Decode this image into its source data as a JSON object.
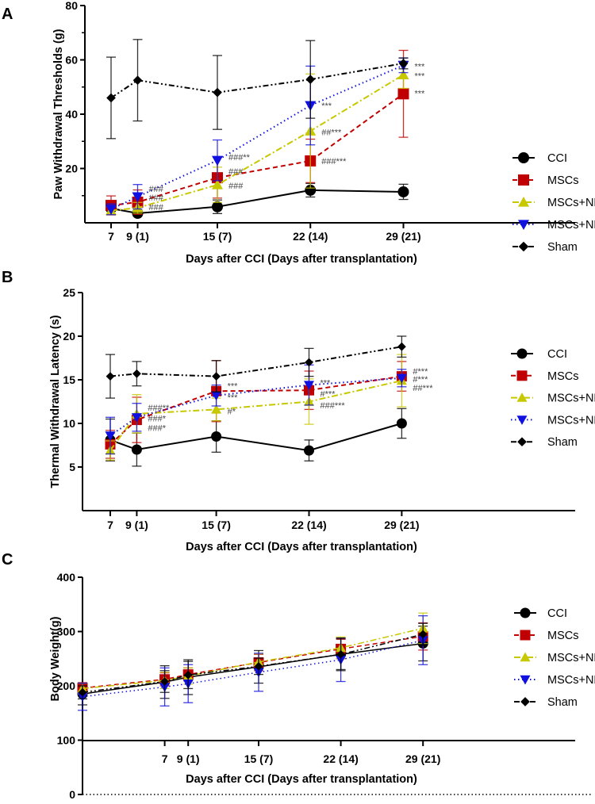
{
  "series_styles": [
    {
      "name": "CCI",
      "color": "#000000",
      "marker": "circle",
      "line": "solid"
    },
    {
      "name": "MSCs",
      "color": "#c00000",
      "marker": "square",
      "line": "dashed"
    },
    {
      "name": "MSCs+NPs",
      "color": "#c8c800",
      "marker": "triangle-up",
      "line": "dash-dot"
    },
    {
      "name": "MSCs+NPs+M",
      "color": "#1010e0",
      "marker": "triangle-down",
      "line": "dotted"
    },
    {
      "name": "Sham",
      "color": "#000000",
      "marker": "diamond",
      "line": "dash-dot-dot"
    }
  ],
  "chart_data": [
    {
      "panel": "A",
      "type": "line",
      "ylabel": "Paw Withdrawal Thresholds (g)",
      "xlabel": "Days after CCI (Days after transplantation)",
      "ylim": [
        0,
        80
      ],
      "yticks": [
        20,
        40,
        60,
        80
      ],
      "x": [
        7,
        9,
        15,
        22,
        29
      ],
      "xtick_labels": [
        "7",
        "9 (1)",
        "15 (7)",
        "22 (14)",
        "29 (21)"
      ],
      "series": [
        {
          "name": "CCI",
          "values": [
            5.3,
            3.5,
            5.9,
            12,
            11.4
          ],
          "errors": [
            1,
            1,
            2.5,
            2.5,
            2.8
          ]
        },
        {
          "name": "MSCs",
          "values": [
            6.4,
            7.6,
            16.6,
            22.8,
            47.5
          ],
          "errors": [
            3.5,
            4.5,
            7.5,
            8,
            16
          ]
        },
        {
          "name": "MSCs+NPs",
          "values": [
            4.5,
            5.5,
            14,
            33.8,
            54.5
          ],
          "errors": [
            1.5,
            2,
            6.5,
            21,
            5
          ]
        },
        {
          "name": "MSCs+NPs+M",
          "values": [
            5,
            9.6,
            23,
            43.2,
            58
          ],
          "errors": [
            2,
            4.5,
            7.5,
            14.5,
            2.7
          ]
        },
        {
          "name": "Sham",
          "values": [
            46,
            52.5,
            48,
            52.8,
            58.7
          ],
          "errors": [
            15,
            15,
            13.6,
            14.3,
            2
          ]
        }
      ],
      "annotations": [
        {
          "text": "###",
          "x": 9,
          "y": 12.5
        },
        {
          "text": "###",
          "x": 9,
          "y": 9.3
        },
        {
          "text": "###",
          "x": 9,
          "y": 5.8
        },
        {
          "text": "###**",
          "x": 15,
          "y": 24.2
        },
        {
          "text": "###",
          "x": 15,
          "y": 19
        },
        {
          "text": "###",
          "x": 15,
          "y": 13.7
        },
        {
          "text": "***",
          "x": 22,
          "y": 43.2
        },
        {
          "text": "##***",
          "x": 22,
          "y": 33.5
        },
        {
          "text": "###***",
          "x": 22,
          "y": 22.8
        },
        {
          "text": "***",
          "x": 29,
          "y": 57.7
        },
        {
          "text": "***",
          "x": 29,
          "y": 54.2
        },
        {
          "text": "***",
          "x": 29,
          "y": 47.8
        }
      ],
      "legend": "right"
    },
    {
      "panel": "B",
      "type": "line",
      "ylabel": "Thermal Withdrawal Latency (s)",
      "xlabel": "Days after CCI (Days after transplantation)",
      "ylim": [
        0,
        25
      ],
      "yticks": [
        5,
        10,
        15,
        20,
        25
      ],
      "x": [
        7,
        9,
        15,
        22,
        29
      ],
      "xtick_labels": [
        "7",
        "9 (1)",
        "15 (7)",
        "22 (14)",
        "29 (21)"
      ],
      "series": [
        {
          "name": "CCI",
          "values": [
            8.1,
            7.0,
            8.5,
            6.9,
            10.0
          ],
          "errors": [
            2.4,
            1.9,
            1.8,
            1.2,
            1.7
          ]
        },
        {
          "name": "MSCs",
          "values": [
            7.6,
            10.4,
            13.7,
            13.8,
            15.4
          ],
          "errors": [
            1.6,
            2.6,
            3.5,
            2.2,
            1.7
          ]
        },
        {
          "name": "MSCs+NPs",
          "values": [
            6.9,
            11.1,
            11.6,
            12.5,
            14.9
          ],
          "errors": [
            1.1,
            2.2,
            1.3,
            2.6,
            3
          ]
        },
        {
          "name": "MSCs+NPs+M",
          "values": [
            8.6,
            10.7,
            13.2,
            14.4,
            15.2
          ],
          "errors": [
            2.1,
            1.6,
            1.2,
            2.3,
            1
          ]
        },
        {
          "name": "Sham",
          "values": [
            15.4,
            15.7,
            15.4,
            17.0,
            18.8
          ],
          "errors": [
            2.5,
            1.4,
            1.8,
            1.6,
            1.2
          ]
        }
      ],
      "annotations": [
        {
          "text": "###**",
          "x": 9,
          "y": 11.8
        },
        {
          "text": "###*",
          "x": 9,
          "y": 10.6
        },
        {
          "text": "###*",
          "x": 9,
          "y": 9.5
        },
        {
          "text": "***",
          "x": 15,
          "y": 14.3
        },
        {
          "text": "***",
          "x": 15,
          "y": 13.0
        },
        {
          "text": "#*",
          "x": 15,
          "y": 11.4
        },
        {
          "text": "***",
          "x": 22,
          "y": 14.7
        },
        {
          "text": "#***",
          "x": 22,
          "y": 13.4
        },
        {
          "text": "###***",
          "x": 22,
          "y": 12.1
        },
        {
          "text": "#***",
          "x": 29,
          "y": 16.0
        },
        {
          "text": "#***",
          "x": 29,
          "y": 15.1
        },
        {
          "text": "##***",
          "x": 29,
          "y": 14.1
        }
      ],
      "legend": "right"
    },
    {
      "panel": "C",
      "type": "line",
      "ylabel": "Body Weight(g)",
      "xlabel": "Days after CCI (Days after transplantation)",
      "ylim": [
        0,
        400
      ],
      "yticks": [
        0,
        100,
        200,
        300,
        400
      ],
      "x": [
        0,
        7,
        9,
        15,
        22,
        29
      ],
      "xtick_labels": [
        "",
        "7",
        "9 (1)",
        "15 (7)",
        "22 (14)",
        "29 (21)"
      ],
      "series": [
        {
          "name": "CCI",
          "values": [
            185,
            207,
            216,
            235,
            258,
            278
          ],
          "errors": [
            20,
            30,
            32,
            30,
            28,
            32
          ]
        },
        {
          "name": "MSCs",
          "values": [
            196,
            212,
            221,
            243,
            268,
            291
          ],
          "errors": [
            10,
            12,
            12,
            15,
            18,
            25
          ]
        },
        {
          "name": "MSCs+NPs",
          "values": [
            195,
            210,
            218,
            244,
            270,
            306
          ],
          "errors": [
            10,
            15,
            15,
            15,
            20,
            28
          ]
        },
        {
          "name": "MSCs+NPs+M",
          "values": [
            180,
            198,
            204,
            225,
            248,
            284
          ],
          "errors": [
            25,
            35,
            35,
            35,
            40,
            45
          ]
        },
        {
          "name": "Sham",
          "values": [
            188,
            208,
            220,
            236,
            258,
            295
          ],
          "errors": [
            12,
            20,
            25,
            15,
            30,
            20
          ]
        }
      ],
      "annotations": [],
      "legend": "right"
    }
  ]
}
